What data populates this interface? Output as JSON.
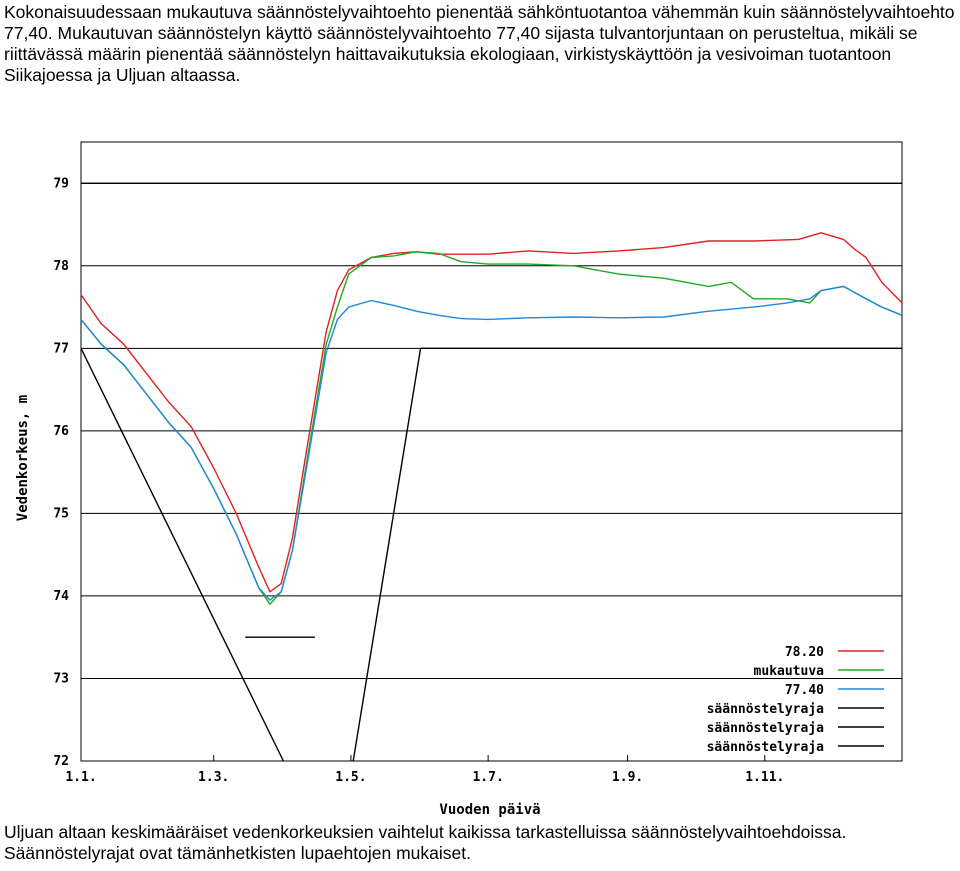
{
  "intro_text": "Kokonaisuudessaan mukautuva säännöstelyvaihtoehto pienentää sähköntuotantoa vähemmän kuin säännöstelyvaihtoehto 77,40. Mukautuvan säännöstelyn käyttö säännöstelyvaihtoehto 77,40 sijasta tulvantorjuntaan on perusteltua, mikäli se riittävässä määrin pienentää säännöstelyn haittavaikutuksia ekologiaan, virkistyskäyttöön ja vesivoiman tuotantoon Siikajoessa ja Uljuan altaassa.",
  "caption_text": "Uljuan altaan keskimääräiset vedenkorkeuksien vaihtelut kaikissa tarkastelluissa säännöstelyvaihtoehdoissa. Säännöstelyrajat ovat tämänhetkisten lupaehtojen mukaiset.",
  "chart_data": {
    "type": "line",
    "xlabel": "Vuoden päivä",
    "ylabel": "Vedenkorkeus, m",
    "xlim": [
      1,
      366
    ],
    "ylim": [
      72,
      79.5
    ],
    "x_ticks": [
      {
        "label": "1.1.",
        "value": 1
      },
      {
        "label": "1.3.",
        "value": 60
      },
      {
        "label": "1.5.",
        "value": 121
      },
      {
        "label": "1.7.",
        "value": 182
      },
      {
        "label": "1.9.",
        "value": 244
      },
      {
        "label": "1.11.",
        "value": 305
      }
    ],
    "y_ticks": [
      72,
      73,
      74,
      75,
      76,
      77,
      78,
      79
    ],
    "grid": "horizontal",
    "legend_position": "bottom-right",
    "series": [
      {
        "name": "78.20",
        "color": "#dd2222",
        "x": [
          1,
          10,
          20,
          30,
          40,
          50,
          60,
          70,
          80,
          85,
          90,
          95,
          100,
          110,
          115,
          120,
          130,
          140,
          150,
          160,
          170,
          182,
          200,
          220,
          240,
          260,
          280,
          300,
          320,
          330,
          340,
          345,
          350,
          357,
          366
        ],
        "y": [
          77.65,
          77.3,
          77.05,
          76.7,
          76.35,
          76.05,
          75.55,
          75.0,
          74.35,
          74.05,
          74.15,
          74.7,
          75.55,
          77.2,
          77.7,
          77.95,
          78.1,
          78.15,
          78.17,
          78.14,
          78.14,
          78.14,
          78.18,
          78.15,
          78.18,
          78.22,
          78.3,
          78.3,
          78.32,
          78.4,
          78.32,
          78.2,
          78.1,
          77.8,
          77.55
        ]
      },
      {
        "name": "mukautuva",
        "color": "#22aa22",
        "x": [
          1,
          10,
          20,
          30,
          40,
          50,
          60,
          70,
          80,
          85,
          90,
          95,
          100,
          110,
          115,
          120,
          130,
          140,
          150,
          160,
          170,
          182,
          200,
          220,
          240,
          260,
          270,
          280,
          290,
          300,
          315,
          325,
          330,
          340,
          350,
          357,
          366
        ],
        "y": [
          77.35,
          77.05,
          76.8,
          76.45,
          76.1,
          75.8,
          75.3,
          74.75,
          74.1,
          73.9,
          74.05,
          74.55,
          75.4,
          77.05,
          77.5,
          77.9,
          78.1,
          78.12,
          78.17,
          78.15,
          78.05,
          78.02,
          78.02,
          78.0,
          77.9,
          77.85,
          77.8,
          77.75,
          77.8,
          77.6,
          77.6,
          77.55,
          77.7,
          77.75,
          77.6,
          77.5,
          77.4
        ]
      },
      {
        "name": "77.40",
        "color": "#2288dd",
        "x": [
          1,
          10,
          20,
          30,
          40,
          50,
          60,
          70,
          80,
          85,
          90,
          95,
          100,
          110,
          115,
          120,
          130,
          140,
          150,
          160,
          170,
          182,
          200,
          220,
          240,
          260,
          280,
          300,
          315,
          325,
          330,
          340,
          350,
          357,
          366
        ],
        "y": [
          77.35,
          77.05,
          76.8,
          76.45,
          76.1,
          75.8,
          75.3,
          74.75,
          74.1,
          73.95,
          74.05,
          74.55,
          75.35,
          76.95,
          77.35,
          77.5,
          77.58,
          77.52,
          77.45,
          77.4,
          77.36,
          77.35,
          77.37,
          77.38,
          77.37,
          77.38,
          77.45,
          77.5,
          77.55,
          77.6,
          77.7,
          77.75,
          77.6,
          77.5,
          77.4
        ]
      },
      {
        "name": "säännöstelyraja",
        "color": "#000000",
        "x": [
          1,
          366
        ],
        "y": [
          79,
          79
        ]
      },
      {
        "name": "säännöstelyraja",
        "color": "#000000",
        "x": [
          1,
          91
        ],
        "y": [
          77,
          72
        ]
      },
      {
        "name": "säännöstelyraja",
        "color": "#000000",
        "x": [
          122,
          152,
          366
        ],
        "y": [
          72,
          77,
          77
        ]
      }
    ],
    "annotations": [
      {
        "type": "segment",
        "x": [
          74,
          105
        ],
        "y": [
          73.5,
          73.5
        ],
        "color": "#000000"
      }
    ]
  }
}
